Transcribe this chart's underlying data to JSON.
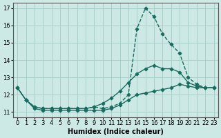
{
  "xlabel": "Humidex (Indice chaleur)",
  "xlim": [
    -0.5,
    23.5
  ],
  "ylim": [
    10.7,
    17.3
  ],
  "yticks": [
    11,
    12,
    13,
    14,
    15,
    16,
    17
  ],
  "xticks": [
    0,
    1,
    2,
    3,
    4,
    5,
    6,
    7,
    8,
    9,
    10,
    11,
    12,
    13,
    14,
    15,
    16,
    17,
    18,
    19,
    20,
    21,
    22,
    23
  ],
  "bg_color": "#cce9e5",
  "grid_color": "#aacfcb",
  "line_color": "#1a6b60",
  "series": [
    {
      "x": [
        0,
        1,
        2,
        3,
        4,
        5,
        6,
        7,
        8,
        9,
        10,
        11,
        12,
        13,
        14,
        15,
        16,
        17,
        18,
        19,
        20,
        21,
        22,
        23
      ],
      "y": [
        12.4,
        11.7,
        11.2,
        11.1,
        11.1,
        11.1,
        11.1,
        11.1,
        11.1,
        11.1,
        11.1,
        11.2,
        11.4,
        11.7,
        12.0,
        12.1,
        12.2,
        12.3,
        12.4,
        12.6,
        12.5,
        12.4,
        12.4,
        12.4
      ],
      "linestyle": "-",
      "marker": "D",
      "markersize": 2.5,
      "linewidth": 1.0
    },
    {
      "x": [
        0,
        1,
        2,
        3,
        4,
        5,
        6,
        7,
        8,
        9,
        10,
        11,
        12,
        13,
        14,
        15,
        16,
        17,
        18,
        19,
        20,
        21,
        22,
        23
      ],
      "y": [
        12.4,
        11.7,
        11.3,
        11.2,
        11.2,
        11.2,
        11.2,
        11.2,
        11.2,
        11.3,
        11.5,
        11.8,
        12.2,
        12.7,
        13.2,
        13.5,
        13.7,
        13.5,
        13.5,
        13.3,
        12.7,
        12.5,
        12.4,
        12.4
      ],
      "linestyle": "-",
      "marker": "D",
      "markersize": 2.5,
      "linewidth": 1.0
    },
    {
      "x": [
        0,
        1,
        2,
        3,
        4,
        5,
        6,
        7,
        8,
        9,
        10,
        11,
        12,
        13,
        14,
        15,
        16,
        17,
        18,
        19,
        20,
        21,
        22,
        23
      ],
      "y": [
        12.4,
        11.7,
        11.3,
        11.2,
        11.2,
        11.2,
        11.2,
        11.2,
        11.2,
        11.3,
        11.2,
        11.3,
        11.5,
        12.0,
        15.8,
        17.0,
        16.5,
        15.5,
        14.9,
        14.4,
        13.0,
        12.6,
        12.4,
        12.4
      ],
      "linestyle": "--",
      "marker": "D",
      "markersize": 2.5,
      "linewidth": 1.0
    }
  ]
}
